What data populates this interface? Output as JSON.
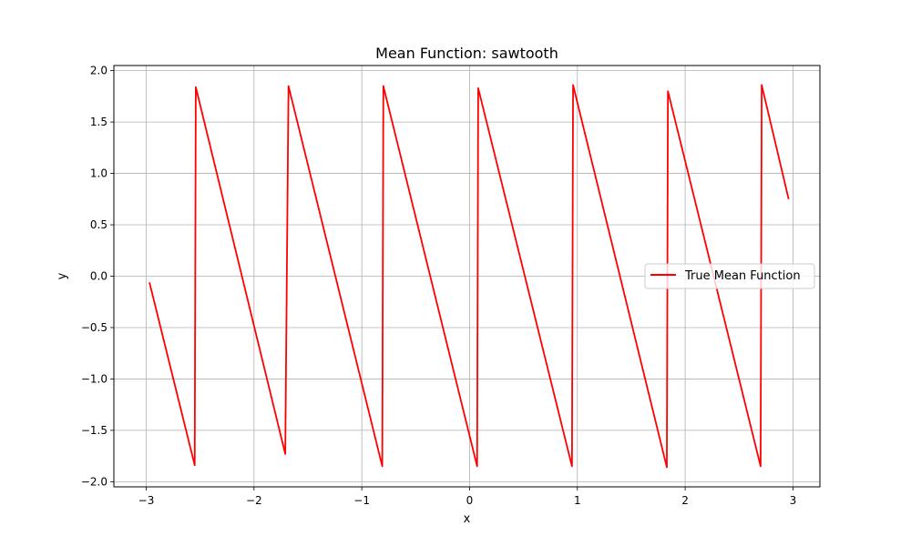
{
  "chart_data": {
    "type": "line",
    "title": "Mean Function: sawtooth",
    "xlabel": "x",
    "ylabel": "y",
    "xlim": [
      -3.3,
      3.25
    ],
    "ylim": [
      -2.05,
      2.05
    ],
    "xticks": [
      -3,
      -2,
      -1,
      0,
      1,
      2,
      3
    ],
    "xtick_labels": [
      "−3",
      "−2",
      "−1",
      "0",
      "1",
      "2",
      "3"
    ],
    "yticks": [
      -2.0,
      -1.5,
      -1.0,
      -0.5,
      0.0,
      0.5,
      1.0,
      1.5,
      2.0
    ],
    "ytick_labels": [
      "−2.0",
      "−1.5",
      "−1.0",
      "−0.5",
      "0.0",
      "0.5",
      "1.0",
      "1.5",
      "2.0"
    ],
    "grid": true,
    "legend_position": "center-right",
    "series": [
      {
        "name": "True Mean Function",
        "color": "#ff0000",
        "x": [
          -2.97,
          -2.55,
          -2.54,
          -1.71,
          -1.68,
          -0.81,
          -0.8,
          0.07,
          0.08,
          0.95,
          0.96,
          1.83,
          1.84,
          2.7,
          2.71,
          2.96
        ],
        "y": [
          -0.06,
          -1.84,
          1.84,
          -1.73,
          1.85,
          -1.85,
          1.85,
          -1.85,
          1.83,
          -1.85,
          1.86,
          -1.86,
          1.8,
          -1.85,
          1.86,
          0.75
        ]
      }
    ]
  }
}
